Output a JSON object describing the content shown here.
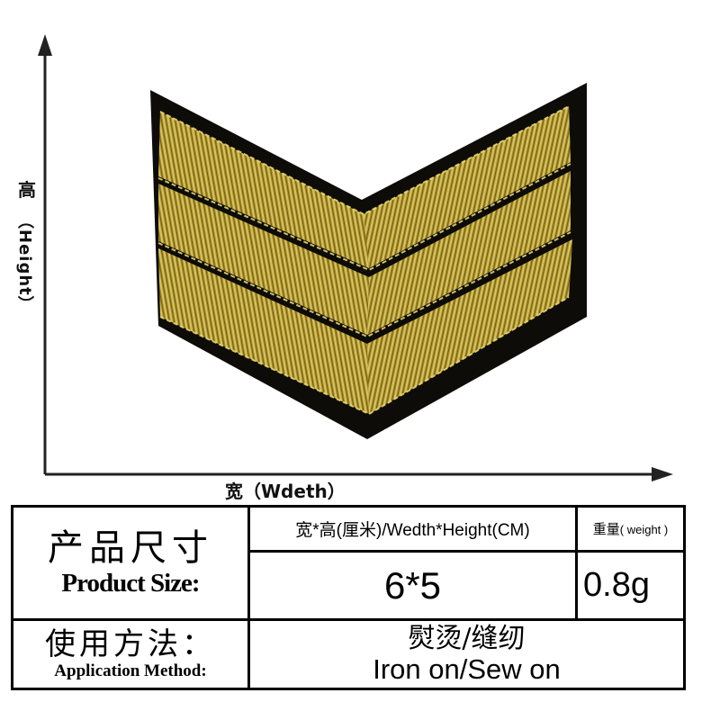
{
  "figure": {
    "y_axis_label_zh": "高",
    "y_axis_label_en": "（Height）",
    "x_axis_label": "宽（Wdeth）",
    "patch_image": "gold embroidered three-chevron sergeant rank patch on black felt",
    "colors": {
      "gold": "#b8a03a",
      "gold_dark": "#6e5a14",
      "backing": "#0d0c08"
    }
  },
  "table": {
    "product_size_zh": "产品尺寸",
    "product_size_en": "Product Size:",
    "size_header": "宽*高(厘米)/Wedth*Height(CM)",
    "weight_header_zh": "重量",
    "weight_header_en": "( weight )",
    "size_value": "6*5",
    "weight_value": "0.8g",
    "application_zh": "使用方法：",
    "application_en": "Application Method:",
    "method_zh": "熨烫/缝纫",
    "method_en": "Iron on/Sew on"
  }
}
